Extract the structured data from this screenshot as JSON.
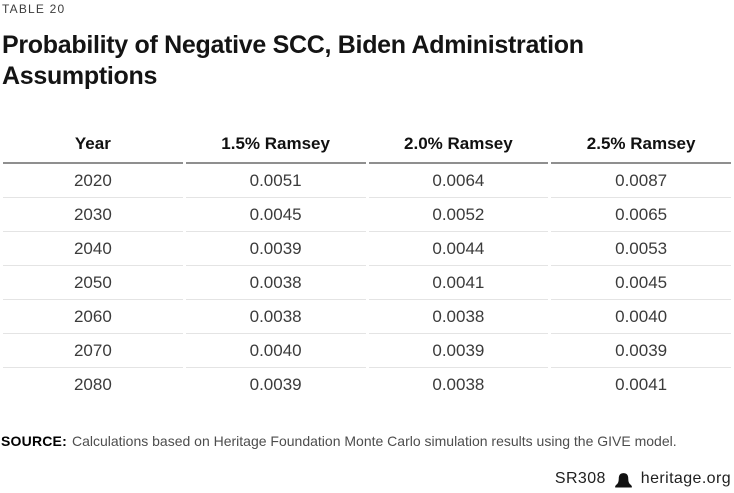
{
  "table_label": "TABLE 20",
  "title": "Probability of Negative SCC, Biden Administration Assumptions",
  "chart_data": {
    "type": "table",
    "title": "Probability of Negative SCC, Biden Administration Assumptions",
    "columns": [
      "Year",
      "1.5% Ramsey",
      "2.0% Ramsey",
      "2.5% Ramsey"
    ],
    "rows": [
      [
        "2020",
        "0.0051",
        "0.0064",
        "0.0087"
      ],
      [
        "2030",
        "0.0045",
        "0.0052",
        "0.0065"
      ],
      [
        "2040",
        "0.0039",
        "0.0044",
        "0.0053"
      ],
      [
        "2050",
        "0.0038",
        "0.0041",
        "0.0045"
      ],
      [
        "2060",
        "0.0038",
        "0.0038",
        "0.0040"
      ],
      [
        "2070",
        "0.0040",
        "0.0039",
        "0.0039"
      ],
      [
        "2080",
        "0.0039",
        "0.0038",
        "0.0041"
      ]
    ]
  },
  "source": {
    "label": "SOURCE:",
    "text": "Calculations based on Heritage Foundation Monte Carlo simulation results using the GIVE model."
  },
  "footer": {
    "report_id": "SR308",
    "site": "heritage.org",
    "logo_icon": "liberty-bell-icon"
  },
  "colors": {
    "title_text": "#141414",
    "header_rule": "#8f8f8f",
    "row_rule": "#e4e4e4",
    "body_text": "#3b3b3b",
    "source_text": "#4d4d4d"
  }
}
